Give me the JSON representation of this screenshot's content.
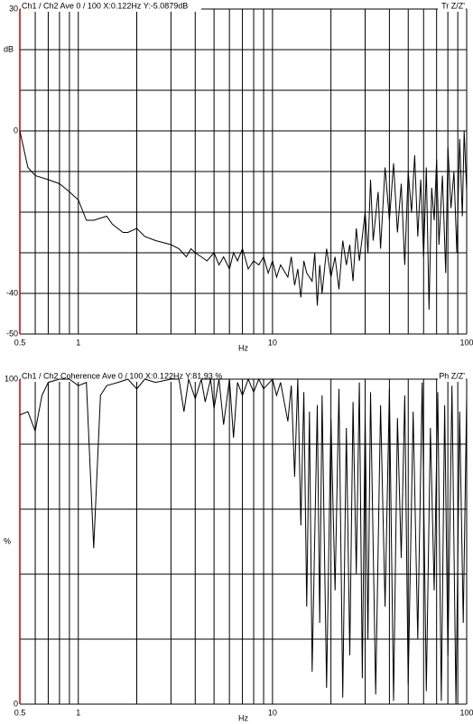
{
  "chart_data": [
    {
      "type": "line",
      "title": "Ch1 / Ch2  Ave 0 / 100  X:0.122Hz  Y:-5.0879dB",
      "corner_label": "Tr Z/Z'",
      "xlabel": "Hz",
      "ylabel": "dB",
      "log_x": true,
      "grid": true,
      "color": "#000000",
      "axis_color": "#c00000",
      "xlim": [
        0.5,
        100
      ],
      "xticks": [
        0.5,
        1,
        10,
        100
      ],
      "xgrid": [
        0.5,
        0.6,
        0.7,
        0.8,
        0.9,
        1,
        2,
        3,
        4,
        5,
        6,
        7,
        8,
        9,
        10,
        20,
        30,
        40,
        50,
        60,
        70,
        80,
        90,
        100
      ],
      "ylim": [
        -50,
        30
      ],
      "yticks": [
        -50,
        -40,
        0,
        30
      ],
      "ygrid": [
        -50,
        -40,
        -30,
        -20,
        -10,
        0,
        10,
        20,
        30
      ],
      "x": [
        0.5,
        0.55,
        0.6,
        0.7,
        0.8,
        0.9,
        1,
        1.1,
        1.2,
        1.4,
        1.5,
        1.7,
        1.8,
        2,
        2.2,
        2.5,
        3,
        3.3,
        3.6,
        3.8,
        4,
        4.3,
        4.6,
        5,
        5.3,
        5.6,
        6,
        6.3,
        6.6,
        7,
        7.5,
        8,
        8.5,
        9,
        9.5,
        10,
        10.5,
        11,
        12,
        12.5,
        13,
        13.5,
        14,
        14.5,
        15,
        16,
        16.5,
        17,
        17.5,
        18,
        19,
        20,
        21,
        22,
        23,
        24,
        25,
        26,
        27,
        28,
        29,
        30,
        31,
        32,
        33,
        35,
        36,
        38,
        40,
        42,
        44,
        46,
        48,
        50,
        52,
        54,
        56,
        58,
        60,
        62,
        64,
        66,
        68,
        70,
        72,
        75,
        78,
        80,
        83,
        86,
        89,
        92,
        95,
        97,
        100
      ],
      "values": [
        0,
        -9,
        -11,
        -12,
        -13,
        -15,
        -17,
        -22,
        -22,
        -21,
        -23,
        -25,
        -25,
        -24,
        -26,
        -27,
        -28,
        -29,
        -31,
        -29,
        -30,
        -31,
        -32,
        -30,
        -33,
        -31,
        -34,
        -30,
        -32,
        -29,
        -34,
        -32,
        -33,
        -31,
        -35,
        -32,
        -36,
        -33,
        -36,
        -31,
        -38,
        -34,
        -41,
        -32,
        -35,
        -37,
        -30,
        -43,
        -33,
        -40,
        -29,
        -36,
        -31,
        -39,
        -27,
        -33,
        -28,
        -37,
        -24,
        -32,
        -26,
        -20,
        -30,
        -12,
        -27,
        -15,
        -29,
        -9,
        -22,
        -8,
        -25,
        -13,
        -33,
        -10,
        -20,
        -6,
        -26,
        -12,
        -31,
        -9,
        -44,
        -14,
        -22,
        -7,
        -28,
        -11,
        -35,
        -4,
        -19,
        -10,
        -30,
        -2,
        -21,
        0,
        -15
      ]
    },
    {
      "type": "line",
      "title": "Ch1 / Ch2  Coherence Ave 0 / 100  X:0.122Hz  Y:81.93 %",
      "corner_label": "Ph Z/Z'",
      "xlabel": "Hz",
      "ylabel": "%",
      "log_x": true,
      "grid": true,
      "color": "#000000",
      "axis_color": "#c00000",
      "xlim": [
        0.5,
        100
      ],
      "xticks": [
        0.5,
        1,
        10,
        100
      ],
      "xgrid": [
        0.5,
        0.6,
        0.7,
        0.8,
        0.9,
        1,
        2,
        3,
        4,
        5,
        6,
        7,
        8,
        9,
        10,
        20,
        30,
        40,
        50,
        60,
        70,
        80,
        90,
        100
      ],
      "ylim": [
        0,
        100
      ],
      "yticks": [
        0,
        100
      ],
      "ygrid": [
        0,
        20,
        40,
        60,
        80,
        100
      ],
      "x": [
        0.5,
        0.55,
        0.6,
        0.65,
        0.7,
        0.8,
        0.9,
        1,
        1.1,
        1.2,
        1.3,
        1.4,
        1.6,
        1.8,
        2,
        2.2,
        2.5,
        3,
        3.3,
        3.5,
        3.7,
        4,
        4.3,
        4.5,
        4.8,
        5,
        5.3,
        5.6,
        6,
        6.3,
        6.6,
        7,
        7.5,
        8,
        8.5,
        9,
        10,
        10.5,
        11,
        12,
        12.5,
        13,
        13.5,
        14,
        14.5,
        15,
        15.5,
        16,
        17,
        17.5,
        18,
        19,
        20,
        21,
        22,
        23,
        24,
        25,
        26,
        27,
        28,
        29,
        30,
        31,
        32,
        34,
        36,
        38,
        40,
        42,
        44,
        46,
        48,
        50,
        53,
        56,
        59,
        62,
        65,
        68,
        71,
        74,
        77,
        80,
        84,
        88,
        92,
        96,
        100
      ],
      "values": [
        89,
        90,
        84,
        95,
        99,
        100,
        100,
        98,
        99,
        48,
        95,
        98,
        99,
        100,
        97,
        100,
        99,
        100,
        100,
        90,
        100,
        94,
        100,
        93,
        100,
        91,
        100,
        86,
        100,
        82,
        99,
        95,
        100,
        96,
        100,
        97,
        100,
        95,
        99,
        87,
        98,
        70,
        100,
        55,
        96,
        30,
        90,
        10,
        92,
        25,
        95,
        5,
        88,
        35,
        97,
        2,
        85,
        15,
        93,
        40,
        99,
        8,
        90,
        20,
        96,
        3,
        92,
        30,
        97,
        1,
        88,
        45,
        95,
        6,
        90,
        20,
        99,
        4,
        85,
        35,
        96,
        1,
        92,
        15,
        98,
        0,
        90,
        25,
        95
      ]
    }
  ]
}
